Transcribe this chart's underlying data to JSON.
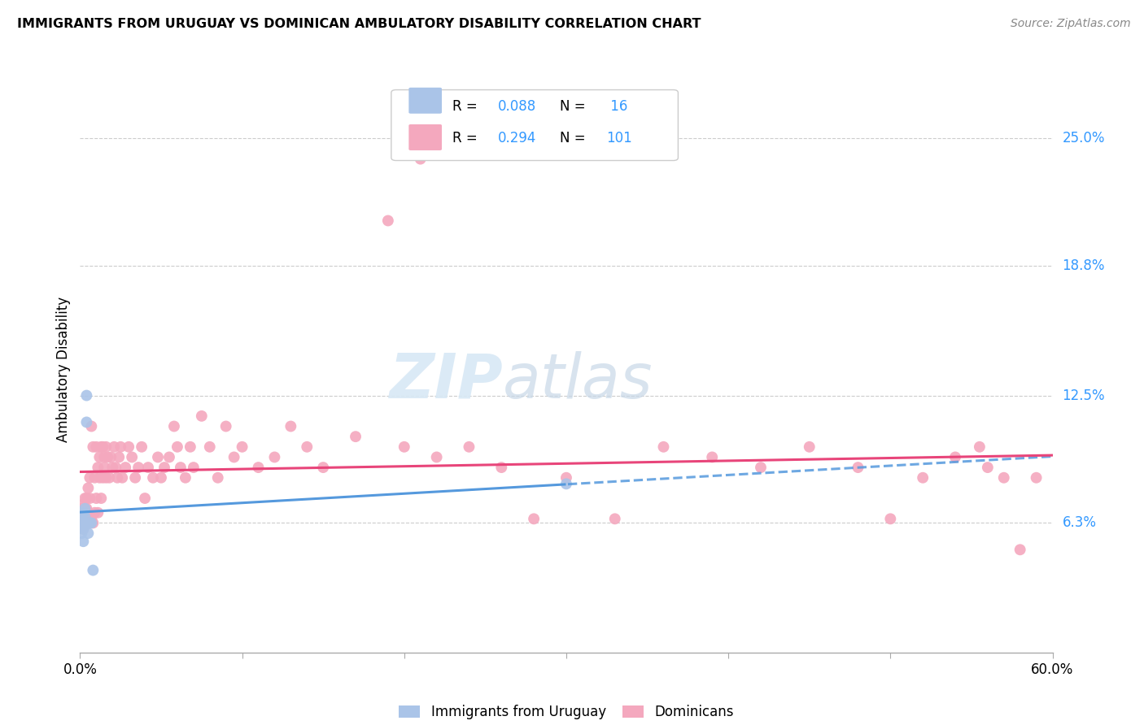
{
  "title": "IMMIGRANTS FROM URUGUAY VS DOMINICAN AMBULATORY DISABILITY CORRELATION CHART",
  "source": "Source: ZipAtlas.com",
  "ylabel": "Ambulatory Disability",
  "xlim": [
    0.0,
    0.6
  ],
  "ylim": [
    0.0,
    0.275
  ],
  "ytick_labels": [
    "6.3%",
    "12.5%",
    "18.8%",
    "25.0%"
  ],
  "ytick_values": [
    0.063,
    0.125,
    0.188,
    0.25
  ],
  "xtick_values": [
    0.0,
    0.1,
    0.2,
    0.3,
    0.4,
    0.5,
    0.6
  ],
  "xtick_labels": [
    "0.0%",
    "",
    "",
    "",
    "",
    "",
    "60.0%"
  ],
  "grid_color": "#cccccc",
  "legend_R1": "R = 0.088",
  "legend_N1": "N =  16",
  "legend_R2": "R = 0.294",
  "legend_N2": "N = 101",
  "legend_label1": "Immigrants from Uruguay",
  "legend_label2": "Dominicans",
  "uruguay_color": "#aac4e8",
  "dominican_color": "#f4a8be",
  "trendline1_color": "#5599dd",
  "trendline2_color": "#e8457a",
  "uruguay_x": [
    0.001,
    0.001,
    0.002,
    0.002,
    0.002,
    0.003,
    0.003,
    0.003,
    0.004,
    0.004,
    0.005,
    0.005,
    0.006,
    0.007,
    0.008,
    0.3
  ],
  "uruguay_y": [
    0.063,
    0.058,
    0.06,
    0.054,
    0.068,
    0.063,
    0.066,
    0.07,
    0.125,
    0.112,
    0.063,
    0.058,
    0.063,
    0.063,
    0.04,
    0.082
  ],
  "dominican_x": [
    0.001,
    0.001,
    0.002,
    0.002,
    0.002,
    0.003,
    0.003,
    0.003,
    0.003,
    0.004,
    0.004,
    0.004,
    0.005,
    0.005,
    0.005,
    0.006,
    0.006,
    0.006,
    0.007,
    0.007,
    0.008,
    0.008,
    0.009,
    0.009,
    0.01,
    0.01,
    0.011,
    0.011,
    0.012,
    0.012,
    0.013,
    0.013,
    0.014,
    0.014,
    0.015,
    0.015,
    0.016,
    0.016,
    0.017,
    0.018,
    0.019,
    0.02,
    0.021,
    0.022,
    0.023,
    0.024,
    0.025,
    0.026,
    0.028,
    0.03,
    0.032,
    0.034,
    0.036,
    0.038,
    0.04,
    0.042,
    0.045,
    0.048,
    0.05,
    0.052,
    0.055,
    0.058,
    0.06,
    0.062,
    0.065,
    0.068,
    0.07,
    0.075,
    0.08,
    0.085,
    0.09,
    0.095,
    0.1,
    0.11,
    0.12,
    0.13,
    0.14,
    0.15,
    0.17,
    0.19,
    0.2,
    0.21,
    0.22,
    0.24,
    0.26,
    0.28,
    0.3,
    0.33,
    0.36,
    0.39,
    0.42,
    0.45,
    0.48,
    0.5,
    0.52,
    0.54,
    0.555,
    0.56,
    0.57,
    0.58,
    0.59
  ],
  "dominican_y": [
    0.063,
    0.07,
    0.065,
    0.072,
    0.06,
    0.068,
    0.063,
    0.075,
    0.07,
    0.065,
    0.07,
    0.075,
    0.063,
    0.068,
    0.08,
    0.063,
    0.085,
    0.075,
    0.065,
    0.11,
    0.063,
    0.1,
    0.068,
    0.085,
    0.075,
    0.1,
    0.068,
    0.09,
    0.085,
    0.095,
    0.1,
    0.075,
    0.085,
    0.1,
    0.095,
    0.09,
    0.1,
    0.085,
    0.095,
    0.085,
    0.095,
    0.09,
    0.1,
    0.09,
    0.085,
    0.095,
    0.1,
    0.085,
    0.09,
    0.1,
    0.095,
    0.085,
    0.09,
    0.1,
    0.075,
    0.09,
    0.085,
    0.095,
    0.085,
    0.09,
    0.095,
    0.11,
    0.1,
    0.09,
    0.085,
    0.1,
    0.09,
    0.115,
    0.1,
    0.085,
    0.11,
    0.095,
    0.1,
    0.09,
    0.095,
    0.11,
    0.1,
    0.09,
    0.105,
    0.21,
    0.1,
    0.24,
    0.095,
    0.1,
    0.09,
    0.065,
    0.085,
    0.065,
    0.1,
    0.095,
    0.09,
    0.1,
    0.09,
    0.065,
    0.085,
    0.095,
    0.1,
    0.09,
    0.085,
    0.05,
    0.085
  ]
}
